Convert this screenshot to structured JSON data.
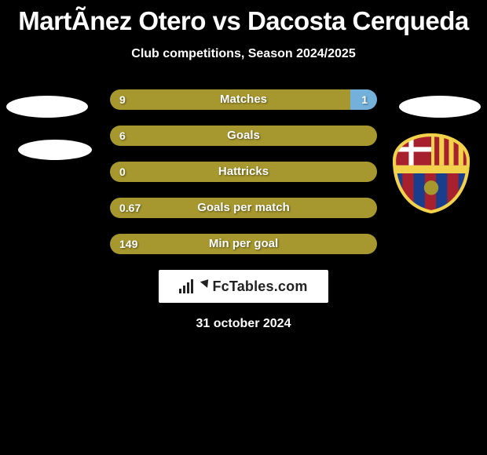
{
  "header": {
    "title": "MartÃ­nez Otero vs Dacosta Cerqueda",
    "subtitle": "Club competitions, Season 2024/2025",
    "date": "31 october 2024"
  },
  "colors": {
    "left_bar": "#a6982e",
    "right_bar": "#73b1db",
    "background": "#000000",
    "text": "#ffffff"
  },
  "stats": [
    {
      "label": "Matches",
      "left_value": "9",
      "right_value": "1",
      "left_pct": 90,
      "right_pct": 10
    },
    {
      "label": "Goals",
      "left_value": "6",
      "right_value": "",
      "left_pct": 100,
      "right_pct": 0
    },
    {
      "label": "Hattricks",
      "left_value": "0",
      "right_value": "",
      "left_pct": 100,
      "right_pct": 0
    },
    {
      "label": "Goals per match",
      "left_value": "0.67",
      "right_value": "",
      "left_pct": 100,
      "right_pct": 0
    },
    {
      "label": "Min per goal",
      "left_value": "149",
      "right_value": "",
      "left_pct": 100,
      "right_pct": 0
    }
  ],
  "footer_logo": {
    "text": "FcTables.com"
  },
  "decor": {
    "ellipse_color": "#ffffff"
  },
  "crest": {
    "name": "fc-barcelona",
    "outer": "#f2d24b",
    "stripe_blue": "#1a3e8c",
    "stripe_red": "#a6202e",
    "ball": "#a6982e"
  }
}
